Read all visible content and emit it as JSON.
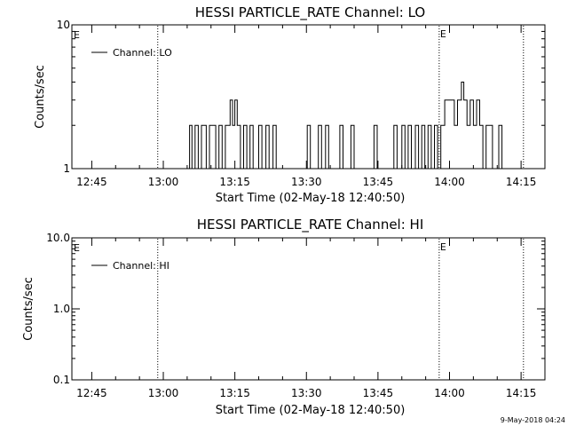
{
  "chart_data": [
    {
      "type": "line",
      "title": "HESSI PARTICLE_RATE Channel: LO",
      "xlabel": "Start Time (02-May-18 12:40:50)",
      "ylabel": "Counts/sec",
      "yscale": "log",
      "ylim": [
        1,
        10
      ],
      "xlim": [
        "12:40:50",
        "14:20:00"
      ],
      "y_ticks": [
        {
          "value": 1,
          "label": "1"
        },
        {
          "value": 10,
          "label": "10"
        }
      ],
      "x_ticks": [
        "12:45",
        "13:00",
        "13:15",
        "13:30",
        "13:45",
        "14:00",
        "14:15"
      ],
      "legend": {
        "entries": [
          "Channel: LO"
        ],
        "position": "top-left"
      },
      "event_lines": [
        {
          "time": "12:58:50",
          "label": "",
          "style": "dotted"
        },
        {
          "time": "13:57:50",
          "label": "E",
          "style": "dotted"
        },
        {
          "time": "14:15:30",
          "label": "",
          "style": "dotted"
        }
      ],
      "corner_marker": "E",
      "series": [
        {
          "name": "Channel: LO",
          "style": "step",
          "points": [
            {
              "t": "13:05:00",
              "v": 1
            },
            {
              "t": "13:05:30",
              "v": 2
            },
            {
              "t": "13:06:00",
              "v": 1
            },
            {
              "t": "13:06:40",
              "v": 2
            },
            {
              "t": "13:07:20",
              "v": 1
            },
            {
              "t": "13:08:00",
              "v": 2
            },
            {
              "t": "13:09:00",
              "v": 1
            },
            {
              "t": "13:09:40",
              "v": 2
            },
            {
              "t": "13:11:00",
              "v": 1
            },
            {
              "t": "13:11:40",
              "v": 2
            },
            {
              "t": "13:12:20",
              "v": 1
            },
            {
              "t": "13:13:00",
              "v": 2
            },
            {
              "t": "13:14:00",
              "v": 3
            },
            {
              "t": "13:14:30",
              "v": 2
            },
            {
              "t": "13:15:00",
              "v": 3
            },
            {
              "t": "13:15:30",
              "v": 2
            },
            {
              "t": "13:16:10",
              "v": 1
            },
            {
              "t": "13:16:50",
              "v": 2
            },
            {
              "t": "13:17:30",
              "v": 1
            },
            {
              "t": "13:18:10",
              "v": 2
            },
            {
              "t": "13:18:50",
              "v": 1
            },
            {
              "t": "13:20:00",
              "v": 2
            },
            {
              "t": "13:20:40",
              "v": 1
            },
            {
              "t": "13:21:30",
              "v": 2
            },
            {
              "t": "13:22:10",
              "v": 1
            },
            {
              "t": "13:23:00",
              "v": 2
            },
            {
              "t": "13:23:40",
              "v": 1
            },
            {
              "t": "13:30:10",
              "v": 2
            },
            {
              "t": "13:30:50",
              "v": 1
            },
            {
              "t": "13:32:30",
              "v": 2
            },
            {
              "t": "13:33:10",
              "v": 1
            },
            {
              "t": "13:34:00",
              "v": 2
            },
            {
              "t": "13:34:40",
              "v": 1
            },
            {
              "t": "13:37:00",
              "v": 2
            },
            {
              "t": "13:37:40",
              "v": 1
            },
            {
              "t": "13:39:20",
              "v": 2
            },
            {
              "t": "13:40:00",
              "v": 1
            },
            {
              "t": "13:44:10",
              "v": 2
            },
            {
              "t": "13:44:50",
              "v": 1
            },
            {
              "t": "13:48:20",
              "v": 2
            },
            {
              "t": "13:49:00",
              "v": 1
            },
            {
              "t": "13:50:00",
              "v": 2
            },
            {
              "t": "13:50:40",
              "v": 1
            },
            {
              "t": "13:51:20",
              "v": 2
            },
            {
              "t": "13:52:00",
              "v": 1
            },
            {
              "t": "13:52:50",
              "v": 2
            },
            {
              "t": "13:53:30",
              "v": 1
            },
            {
              "t": "13:54:10",
              "v": 2
            },
            {
              "t": "13:54:50",
              "v": 1
            },
            {
              "t": "13:55:30",
              "v": 2
            },
            {
              "t": "13:56:10",
              "v": 1
            },
            {
              "t": "13:56:50",
              "v": 2
            },
            {
              "t": "13:57:30",
              "v": 1
            },
            {
              "t": "13:58:10",
              "v": 2
            },
            {
              "t": "13:59:00",
              "v": 3
            },
            {
              "t": "14:00:00",
              "v": 3
            },
            {
              "t": "14:01:00",
              "v": 2
            },
            {
              "t": "14:01:40",
              "v": 3
            },
            {
              "t": "14:02:30",
              "v": 4
            },
            {
              "t": "14:03:00",
              "v": 3
            },
            {
              "t": "14:03:40",
              "v": 2
            },
            {
              "t": "14:04:20",
              "v": 3
            },
            {
              "t": "14:05:00",
              "v": 2
            },
            {
              "t": "14:05:40",
              "v": 3
            },
            {
              "t": "14:06:20",
              "v": 2
            },
            {
              "t": "14:07:00",
              "v": 1
            },
            {
              "t": "14:07:40",
              "v": 2
            },
            {
              "t": "14:09:00",
              "v": 1
            },
            {
              "t": "14:10:20",
              "v": 2
            },
            {
              "t": "14:11:00",
              "v": 1
            },
            {
              "t": "14:12:00",
              "v": 1
            }
          ]
        }
      ]
    },
    {
      "type": "line",
      "title": "HESSI PARTICLE_RATE Channel: HI",
      "xlabel": "Start Time (02-May-18 12:40:50)",
      "ylabel": "Counts/sec",
      "yscale": "log",
      "ylim": [
        0.1,
        10
      ],
      "xlim": [
        "12:40:50",
        "14:20:00"
      ],
      "y_ticks": [
        {
          "value": 0.1,
          "label": "0.1"
        },
        {
          "value": 1,
          "label": "1.0"
        },
        {
          "value": 10,
          "label": "10.0"
        }
      ],
      "x_ticks": [
        "12:45",
        "13:00",
        "13:15",
        "13:30",
        "13:45",
        "14:00",
        "14:15"
      ],
      "legend": {
        "entries": [
          "Channel: HI"
        ],
        "position": "top-left"
      },
      "event_lines": [
        {
          "time": "12:58:50",
          "label": "",
          "style": "dotted"
        },
        {
          "time": "13:57:50",
          "label": "E",
          "style": "dotted"
        },
        {
          "time": "14:15:30",
          "label": "",
          "style": "dotted"
        }
      ],
      "corner_marker": "E",
      "series": [
        {
          "name": "Channel: HI",
          "style": "step",
          "points": []
        }
      ]
    }
  ],
  "footer": {
    "timestamp": "9-May-2018 04:24"
  }
}
